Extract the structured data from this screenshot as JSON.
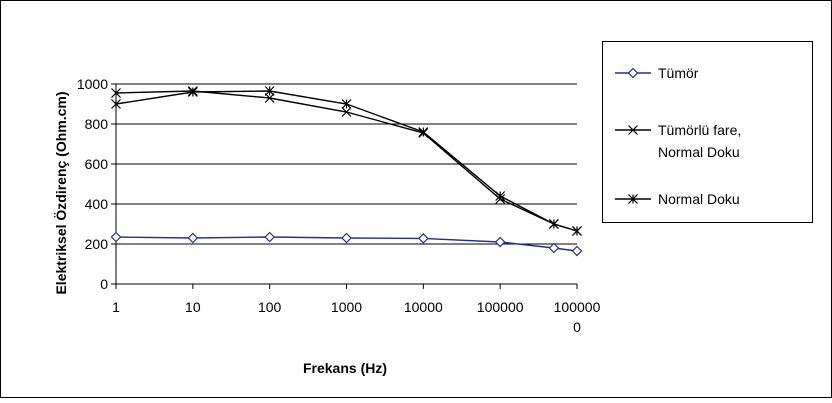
{
  "chart_data": {
    "type": "line",
    "title": "",
    "xlabel": "Frekans (Hz)",
    "ylabel": "Elektriksel Özdirenç  (Ohm.cm)",
    "x_scale": "log",
    "xlim": [
      1,
      1000000
    ],
    "ylim": [
      0,
      1000
    ],
    "x_ticks": [
      1,
      10,
      100,
      1000,
      10000,
      100000,
      1000000
    ],
    "x_tick_labels": [
      "1",
      "10",
      "100",
      "1000",
      "10000",
      "100000",
      "100000\n0"
    ],
    "y_ticks": [
      0,
      200,
      400,
      600,
      800,
      1000
    ],
    "y_tick_labels": [
      "0",
      "200",
      "400",
      "600",
      "800",
      "1000"
    ],
    "grid": "horizontal",
    "legend_position": "right",
    "series": [
      {
        "name": "Tümör",
        "marker": "diamond",
        "color": "#1f2f9f",
        "x": [
          1,
          10,
          100,
          1000,
          10000,
          100000,
          500000,
          1000000
        ],
        "y": [
          235,
          230,
          235,
          230,
          228,
          210,
          180,
          165
        ]
      },
      {
        "name": "Tümörlü fare, Normal Doku",
        "marker": "x",
        "color": "#000000",
        "x": [
          1,
          10,
          100,
          1000,
          10000,
          100000,
          500000,
          1000000
        ],
        "y": [
          955,
          965,
          930,
          860,
          755,
          425,
          300,
          265
        ]
      },
      {
        "name": "Normal Doku",
        "marker": "star",
        "color": "#000000",
        "x": [
          1,
          10,
          100,
          1000,
          10000,
          100000,
          500000,
          1000000
        ],
        "y": [
          900,
          960,
          965,
          900,
          760,
          440,
          300,
          265
        ]
      }
    ]
  },
  "legend": {
    "items": [
      {
        "lines": [
          "Tümör"
        ]
      },
      {
        "lines": [
          "Tümörlü fare,",
          "Normal Doku"
        ]
      },
      {
        "lines": [
          "Normal Doku"
        ]
      }
    ]
  }
}
